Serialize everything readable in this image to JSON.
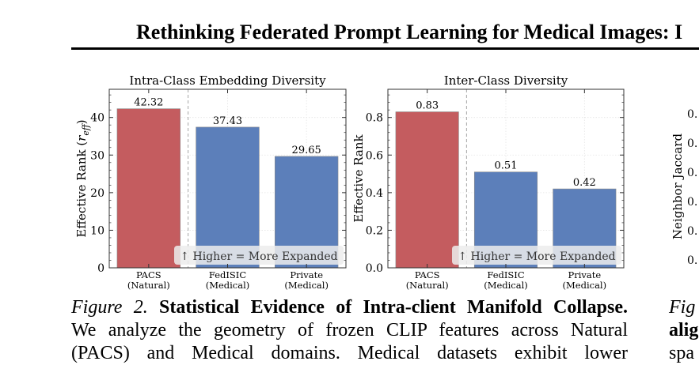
{
  "header": {
    "title": "Rethinking Federated Prompt Learning for Medical Images: I"
  },
  "chart_data": [
    {
      "type": "bar",
      "title": "Intra-Class Embedding Diversity",
      "ylabel": "Effective Rank (r_eff)",
      "ylim": [
        0,
        47.5
      ],
      "yticks": [
        0,
        10,
        20,
        30,
        40
      ],
      "categories": [
        {
          "name": "PACS",
          "domain": "(Natural)"
        },
        {
          "name": "FedISIC",
          "domain": "(Medical)"
        },
        {
          "name": "Private",
          "domain": "(Medical)"
        }
      ],
      "values": [
        42.32,
        37.43,
        29.65
      ],
      "value_labels": [
        "42.32",
        "37.43",
        "29.65"
      ],
      "bar_colors": [
        "#c45c5f",
        "#5c7fba",
        "#5c7fba"
      ],
      "annotation": "↑ Higher = More Expanded",
      "separator_after_index": 0,
      "grid": true
    },
    {
      "type": "bar",
      "title": "Inter-Class Diversity",
      "ylabel": "Effective Rank",
      "ylim": [
        0,
        0.95
      ],
      "yticks": [
        0.0,
        0.2,
        0.4,
        0.6,
        0.8
      ],
      "ytick_labels": [
        "0.0",
        "0.2",
        "0.4",
        "0.6",
        "0.8"
      ],
      "categories": [
        {
          "name": "PACS",
          "domain": "(Natural)"
        },
        {
          "name": "FedISIC",
          "domain": "(Medical)"
        },
        {
          "name": "Private",
          "domain": "(Medical)"
        }
      ],
      "values": [
        0.83,
        0.51,
        0.42
      ],
      "value_labels": [
        "0.83",
        "0.51",
        "0.42"
      ],
      "bar_colors": [
        "#c45c5f",
        "#5c7fba",
        "#5c7fba"
      ],
      "annotation": "↑ Higher = More Expanded",
      "separator_after_index": 0,
      "grid": true
    },
    {
      "type": "bar",
      "partial": true,
      "ylabel": "Neighbor Jaccard",
      "visible_tick_labels": [
        "0.",
        "0.",
        "0.",
        "0.",
        "0.",
        "0."
      ]
    }
  ],
  "caption": {
    "label": "Figure 2.",
    "title": "Statistical Evidence of Intra-client Manifold Collapse.",
    "line2": "We analyze the geometry of frozen CLIP features across Natural",
    "line3": "(PACS) and Medical domains.  Medical datasets exhibit lower"
  },
  "right_caption": {
    "line1": "Fig",
    "line2": "alig",
    "line3": "spa"
  }
}
